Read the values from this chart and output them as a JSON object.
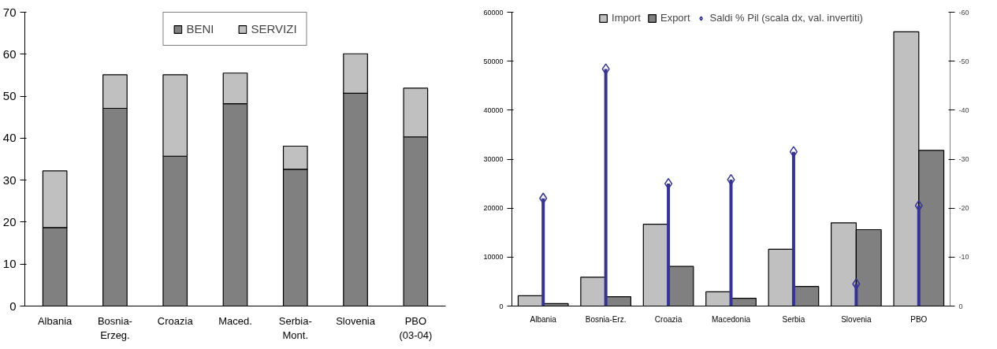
{
  "chart_data": [
    {
      "type": "bar",
      "stacked": true,
      "categories": [
        "Albania",
        "Bosnia-\nErzeg.",
        "Croazia",
        "Maced.",
        "Serbia-\nMont.",
        "Slovenia",
        "PBO\n(03-04)"
      ],
      "series": [
        {
          "name": "BENI",
          "color": "#808080",
          "values": [
            18.7,
            47.1,
            35.7,
            48.2,
            32.6,
            50.7,
            40.3
          ]
        },
        {
          "name": "SERVIZI",
          "color": "#c0c0c0",
          "values": [
            13.5,
            8.0,
            19.4,
            7.3,
            5.5,
            9.4,
            11.6
          ]
        }
      ],
      "ylim": [
        0,
        70
      ],
      "yticks": [
        0,
        10,
        20,
        30,
        40,
        50,
        60,
        70
      ],
      "grid": false,
      "legend": "top"
    },
    {
      "type": "bar",
      "categories": [
        "Albania",
        "Bosnia-Erz.",
        "Croazia",
        "Macedonia",
        "Serbia",
        "Slovenia",
        "PBO"
      ],
      "series": [
        {
          "name": "Import",
          "color": "#c0c0c0",
          "values": [
            2100,
            5900,
            16700,
            2900,
            11600,
            17000,
            56000
          ]
        },
        {
          "name": "Export",
          "color": "#808080",
          "values": [
            500,
            1900,
            8100,
            1600,
            4000,
            15600,
            31800
          ]
        },
        {
          "name": "Saldi % Pil (scala dx, val. invertiti)",
          "type": "lollipop",
          "axis": "y2",
          "color": "#333399",
          "values": [
            -22,
            -48.4,
            -25,
            -25.8,
            -31.5,
            -4.5,
            -20.5
          ]
        }
      ],
      "ylim": [
        0,
        60000
      ],
      "yticks": [
        0,
        10000,
        20000,
        30000,
        40000,
        50000,
        60000
      ],
      "y2lim": [
        0,
        -60
      ],
      "y2ticks": [
        -60,
        -50,
        -40,
        -30,
        -20,
        -10,
        0
      ],
      "marker": "diamond",
      "grid": false,
      "legend": "top"
    }
  ]
}
